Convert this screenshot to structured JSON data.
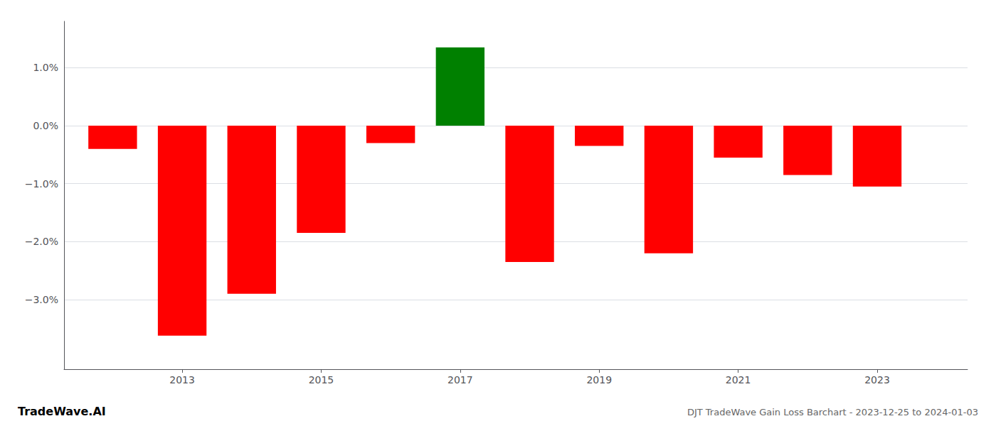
{
  "chart_data": {
    "type": "bar",
    "title": "DJT TradeWave Gain Loss Barchart - 2023-12-25 to 2024-01-03",
    "annotations": [
      "TradeWave.AI"
    ],
    "x": [
      2012,
      2013,
      2014,
      2015,
      2016,
      2017,
      2018,
      2019,
      2020,
      2021,
      2022,
      2023
    ],
    "values": [
      -0.4,
      -3.62,
      -2.9,
      -1.85,
      -0.3,
      1.35,
      -2.35,
      -0.35,
      -2.2,
      -0.55,
      -0.85,
      -1.05
    ],
    "colors": [
      "red",
      "red",
      "red",
      "red",
      "red",
      "green",
      "red",
      "red",
      "red",
      "red",
      "red",
      "red"
    ],
    "xlim": [
      2011.3,
      2024.3
    ],
    "xticks": [
      2013,
      2015,
      2017,
      2019,
      2021,
      2023
    ],
    "ylim": [
      -4.2,
      1.8
    ],
    "yticks": [
      {
        "value": -3.0,
        "label": "−3.0%"
      },
      {
        "value": -2.0,
        "label": "−2.0%"
      },
      {
        "value": -1.0,
        "label": "−1.0%"
      },
      {
        "value": 0.0,
        "label": "0.0%"
      },
      {
        "value": 1.0,
        "label": "1.0%"
      }
    ],
    "grid": true
  }
}
